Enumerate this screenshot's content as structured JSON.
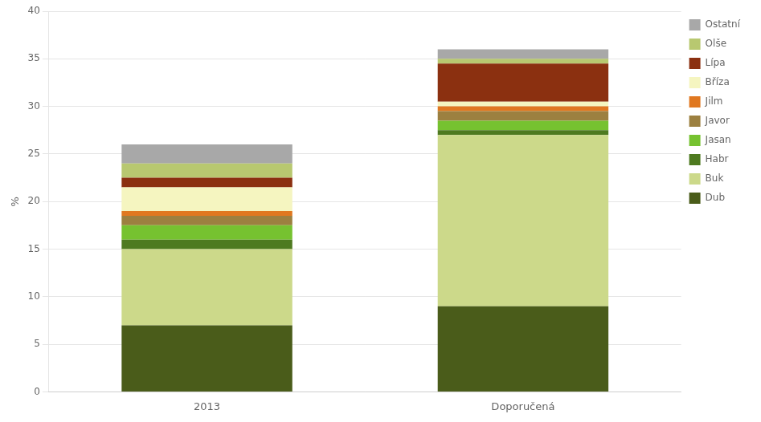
{
  "chart_data": {
    "type": "bar",
    "stacked": true,
    "categories": [
      "2013",
      "Doporučená"
    ],
    "series": [
      {
        "name": "Dub",
        "color": "#4a5c1a",
        "values": [
          7.0,
          9.0
        ]
      },
      {
        "name": "Buk",
        "color": "#ccd98a",
        "values": [
          8.0,
          18.0
        ]
      },
      {
        "name": "Habr",
        "color": "#4e7a20",
        "values": [
          1.0,
          0.5
        ]
      },
      {
        "name": "Jasan",
        "color": "#76c230",
        "values": [
          1.5,
          1.0
        ]
      },
      {
        "name": "Javor",
        "color": "#9c8040",
        "values": [
          1.0,
          1.0
        ]
      },
      {
        "name": "Jilm",
        "color": "#e07820",
        "values": [
          0.5,
          0.5
        ]
      },
      {
        "name": "Bříza",
        "color": "#f5f5c0",
        "values": [
          2.5,
          0.5
        ]
      },
      {
        "name": "Lípa",
        "color": "#8b3010",
        "values": [
          1.0,
          4.0
        ]
      },
      {
        "name": "Olše",
        "color": "#b8c870",
        "values": [
          1.5,
          0.5
        ]
      },
      {
        "name": "Ostatní",
        "color": "#a8a8a8",
        "values": [
          2.0,
          1.0
        ]
      }
    ],
    "ylabel": "%",
    "ylim": [
      0,
      40
    ],
    "yticks": [
      0,
      5,
      10,
      15,
      20,
      25,
      30,
      35,
      40
    ],
    "grid": true,
    "legend": "right"
  }
}
